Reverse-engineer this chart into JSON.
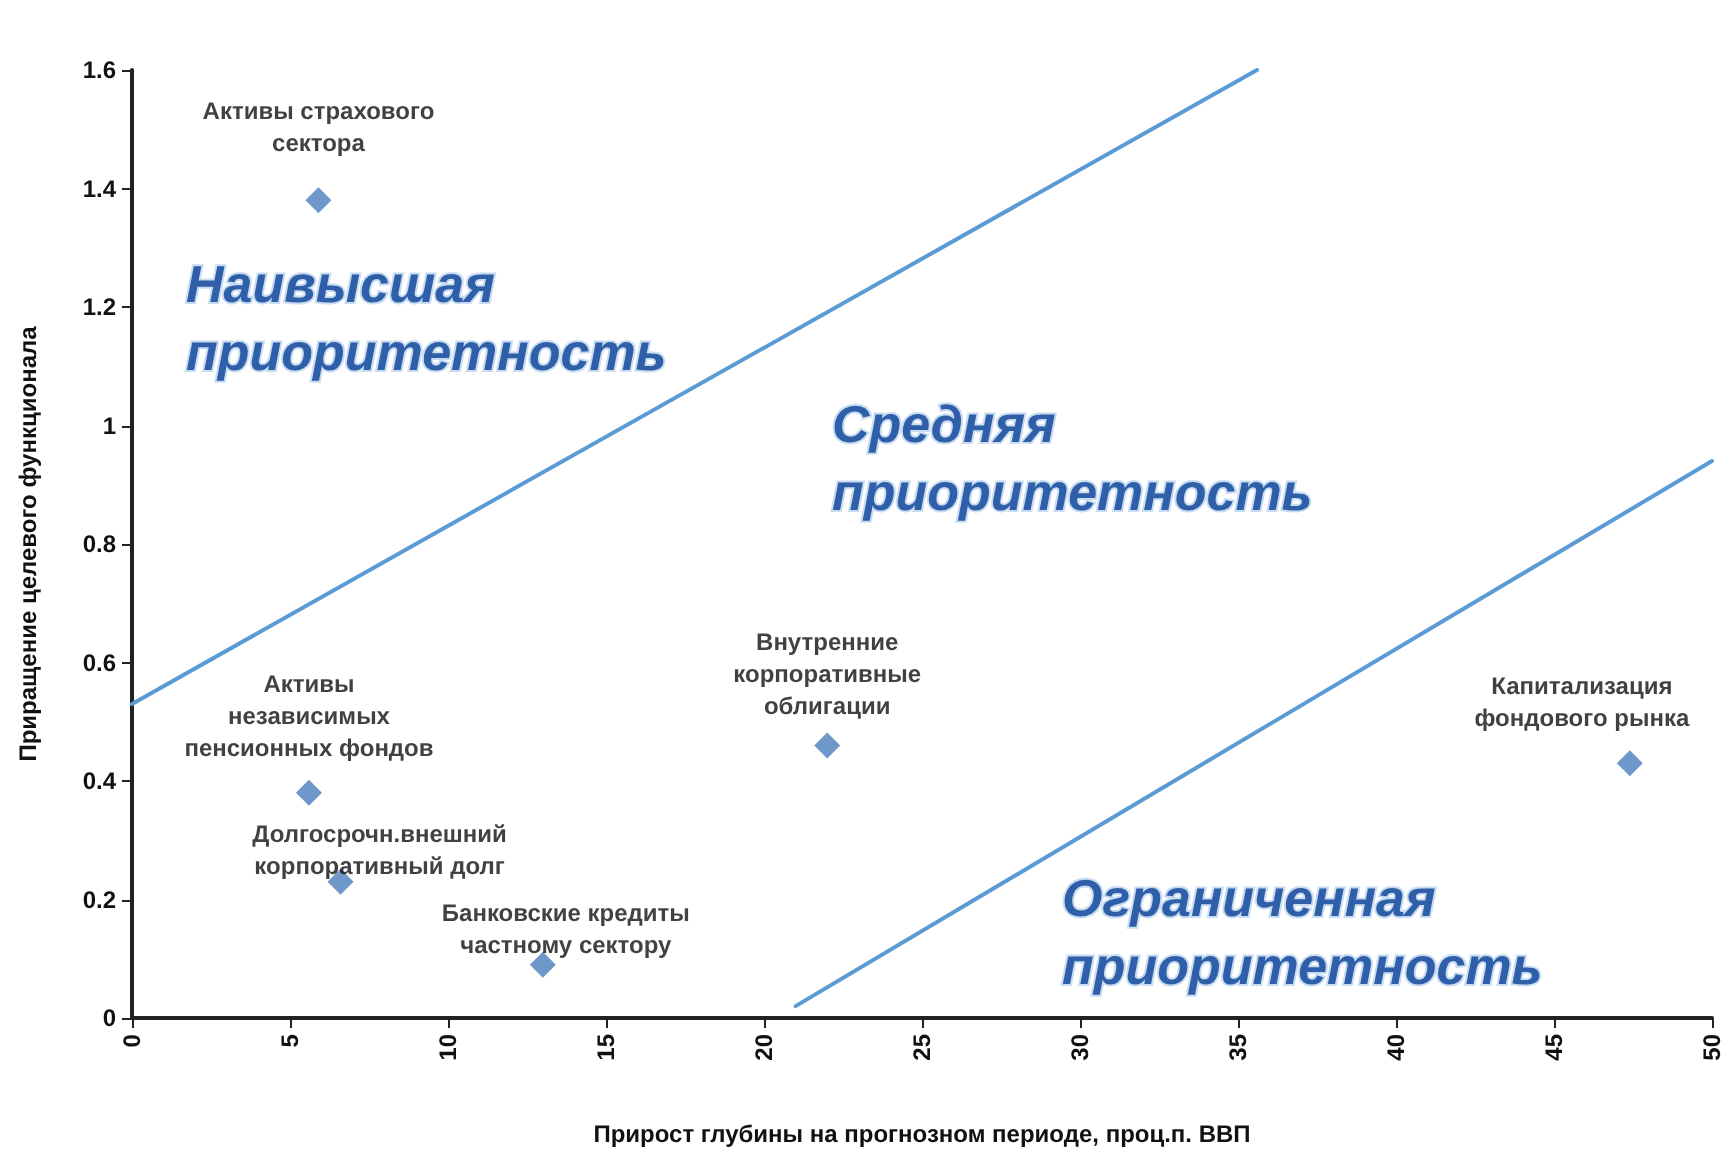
{
  "chart_data": {
    "type": "scatter",
    "xlabel": "Прирост глубины на прогнозном периоде, проц.п. ВВП",
    "ylabel": "Приращение целевого функционала",
    "xlim": [
      0,
      50
    ],
    "ylim": [
      0,
      1.6
    ],
    "xticks": [
      0,
      5,
      10,
      15,
      20,
      25,
      30,
      35,
      40,
      45,
      50
    ],
    "yticks": [
      0,
      0.2,
      0.4,
      0.6,
      0.8,
      1,
      1.2,
      1.4,
      1.6
    ],
    "grid": false,
    "legend": false,
    "marker": "diamond",
    "series": [
      {
        "name": "Активы страхового\nсектора",
        "color": "#4a7ebb",
        "x": [
          5.9
        ],
        "values": [
          1.38
        ]
      },
      {
        "name": "Активы\nнезависимых\nпенсионных фондов",
        "color": "#4a7ebb",
        "x": [
          5.6
        ],
        "values": [
          0.38
        ]
      },
      {
        "name": "Долгосрочн.внешний\nкорпоративный долг",
        "color": "#4a7ebb",
        "x": [
          6.6
        ],
        "values": [
          0.23
        ]
      },
      {
        "name": "Банковские кредиты\nчастному сектору",
        "color": "#4a7ebb",
        "x": [
          13
        ],
        "values": [
          0.09
        ]
      },
      {
        "name": "Внутренние\nкорпоративные\nоблигации",
        "color": "#4a7ebb",
        "x": [
          22
        ],
        "values": [
          0.46
        ]
      },
      {
        "name": "Капитализация\nфондового рынка",
        "color": "#4a7ebb",
        "x": [
          47.4
        ],
        "values": [
          0.43
        ]
      },
      {
        "type": "line",
        "color": "#5b9bd5",
        "marker": "none",
        "line_style": "solid",
        "x": [
          0,
          35.6
        ],
        "values": [
          0.53,
          1.6
        ]
      },
      {
        "type": "line",
        "color": "#5b9bd5",
        "marker": "none",
        "line_style": "solid",
        "x": [
          21,
          50
        ],
        "values": [
          0.02,
          0.94
        ]
      }
    ],
    "annotations": [
      "Наивысшая приоритетность",
      "Средняя приоритетность",
      "Ограниченная приоритетность"
    ]
  }
}
